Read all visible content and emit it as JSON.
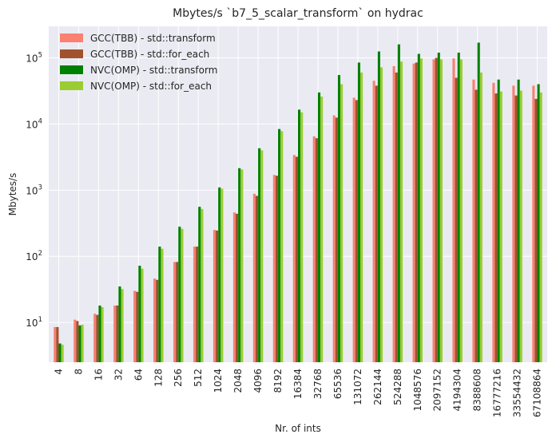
{
  "chart_data": {
    "type": "bar",
    "title": "Mbytes/s `b7_5_scalar_transform` on hydrac",
    "xlabel": "Nr. of ints",
    "ylabel": "Mbytes/s",
    "yscale": "log",
    "ylim": [
      2.5,
      300000
    ],
    "yticks": [
      {
        "value": 10,
        "base": "10",
        "exp": "1"
      },
      {
        "value": 100,
        "base": "10",
        "exp": "2"
      },
      {
        "value": 1000,
        "base": "10",
        "exp": "3"
      },
      {
        "value": 10000,
        "base": "10",
        "exp": "4"
      },
      {
        "value": 100000,
        "base": "10",
        "exp": "5"
      }
    ],
    "grid": true,
    "legend_position": "top-left",
    "categories": [
      "4",
      "8",
      "16",
      "32",
      "64",
      "128",
      "256",
      "512",
      "1024",
      "2048",
      "4096",
      "8192",
      "16384",
      "32768",
      "65536",
      "131072",
      "262144",
      "524288",
      "1048576",
      "2097152",
      "4194304",
      "8388608",
      "16777216",
      "33554432",
      "67108864"
    ],
    "series": [
      {
        "name": "GCC(TBB) - std::transform",
        "color": "#fa8072",
        "values": [
          8.5,
          11,
          13.5,
          18,
          30,
          46,
          82,
          140,
          250,
          460,
          880,
          1700,
          3400,
          6500,
          13500,
          25000,
          45000,
          75000,
          82000,
          95000,
          98000,
          47000,
          42000,
          38000,
          38000
        ]
      },
      {
        "name": "GCC(TBB) - std::for_each",
        "color": "#a0522d",
        "values": [
          8.5,
          10.5,
          13,
          18,
          29,
          44,
          82,
          140,
          245,
          440,
          820,
          1650,
          3200,
          6100,
          12500,
          23000,
          38000,
          60000,
          85000,
          100000,
          50000,
          33000,
          29000,
          27000,
          24000
        ]
      },
      {
        "name": "NVC(OMP) - std::transform",
        "color": "#008000",
        "values": [
          4.8,
          9,
          18,
          35,
          72,
          140,
          280,
          560,
          1100,
          2150,
          4300,
          8400,
          16500,
          30000,
          55000,
          85000,
          125000,
          160000,
          115000,
          120000,
          120000,
          170000,
          47000,
          47000,
          40000
        ]
      },
      {
        "name": "NVC(OMP) - std::for_each",
        "color": "#9acd32",
        "values": [
          4.6,
          9.2,
          17,
          32,
          65,
          130,
          260,
          520,
          1050,
          2050,
          4000,
          7800,
          15000,
          26000,
          40000,
          60000,
          72000,
          88000,
          98000,
          95000,
          95000,
          60000,
          31000,
          32000,
          30000
        ]
      }
    ]
  }
}
